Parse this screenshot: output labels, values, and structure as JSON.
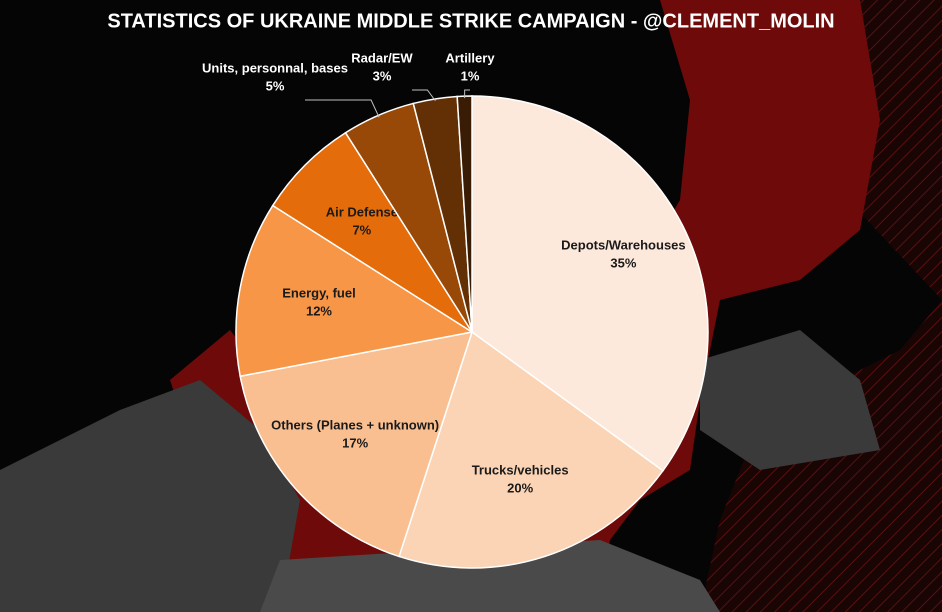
{
  "chart_data": {
    "type": "pie",
    "title": "STATISTICS OF UKRAINE MIDDLE STRIKE CAMPAIGN - @CLEMENT_MOLIN",
    "categories": [
      "Depots/Warehouses",
      "Trucks/vehicles",
      "Others (Planes + unknown)",
      "Energy, fuel",
      "Air Defense",
      "Units, personnal, bases",
      "Radar/EW",
      "Artillery"
    ],
    "values": [
      35,
      20,
      17,
      12,
      7,
      5,
      3,
      1
    ],
    "value_labels": [
      "35%",
      "20%",
      "17%",
      "12%",
      "7%",
      "5%",
      "3%",
      "1%"
    ],
    "colors": [
      "#fde9db",
      "#fbd4b5",
      "#f9bf90",
      "#f79646",
      "#e46c0a",
      "#984807",
      "#633005",
      "#3a1c04"
    ]
  }
}
